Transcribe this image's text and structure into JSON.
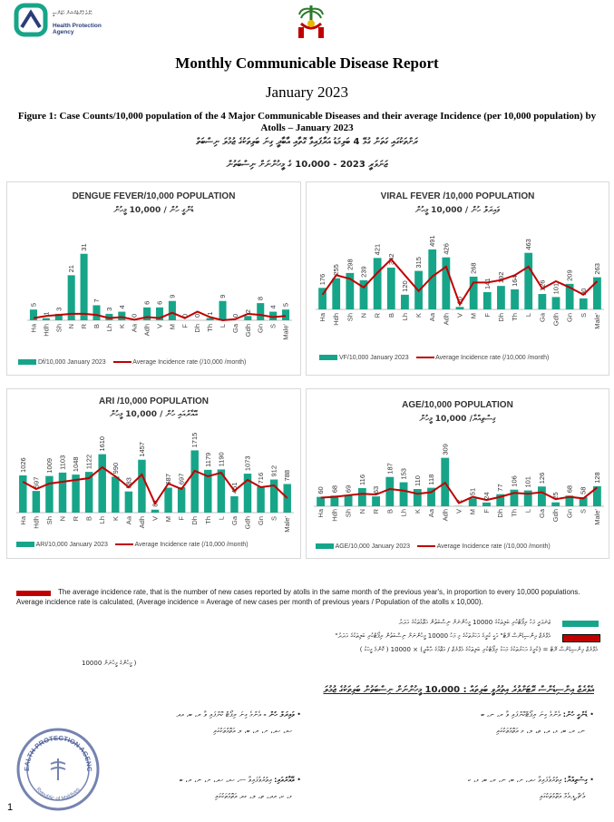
{
  "header": {
    "agency_dv": "ހެލްތު ޕްރޮޓެކްޝަން އެޖެންސީ",
    "agency_name": "Health Protection Agency",
    "colors": {
      "teal": "#17a589",
      "navy": "#2a3d7a",
      "red": "#c00000"
    }
  },
  "report": {
    "title": "Monthly Communicable Disease Report",
    "month": "January 2023",
    "figure_caption": "Figure 1: Case Counts/10,000 population of the 4 Major Communicable Diseases and their average Incidence (per 10,000 population) by Atolls – January 2023",
    "caption_dv_1": "ރަށްތަކުގައި ގަތަން ގުޅޭ 4 ބަލިމަޑު އަރާފައިވާ ގޮތާއި އާބާދީ ގިނަ ބަލިތަކުގެ ޖުމުލަ ނިސްބަތް",
    "caption_dv_2": "ޖަނަވަރީ 2023 - 10،000 ގެ މީހުންނަށް ނިސްބަތުން"
  },
  "chart_data": [
    {
      "type": "bar",
      "title": "DENGUE FEVER/10,000 POPULATION",
      "subtitle_dv": "ޑެންގީ ހުން / 10,000 މީހުން",
      "categories": [
        "Ha",
        "Hdh",
        "Sh",
        "N",
        "R",
        "B",
        "Lh",
        "K",
        "Aa",
        "Adh",
        "V",
        "M",
        "F",
        "Dh",
        "Th",
        "L",
        "Ga",
        "Gdh",
        "Gn",
        "S",
        "Male'"
      ],
      "series": [
        {
          "name": "Df/10,000 January 2023",
          "values": [
            5,
            1,
            3,
            21,
            31,
            7,
            3,
            4,
            0,
            6,
            6,
            9,
            0,
            0,
            1,
            9,
            0,
            2,
            8,
            4,
            5
          ]
        },
        {
          "name": "Average Incidence rate (/10,000 /month)",
          "values": [
            1,
            2,
            2.5,
            3,
            3,
            2.5,
            1,
            1.5,
            0.3,
            1.5,
            1,
            3.5,
            1,
            4,
            1.5,
            0,
            0.5,
            3,
            2.5,
            1.5,
            2
          ]
        }
      ],
      "ylim": [
        0,
        33
      ]
    },
    {
      "type": "bar",
      "title": "VIRAL FEVER /10,000 POPULATION",
      "subtitle_dv": "ވައިރަލް ހުން / 10,000 މީހުން",
      "categories": [
        "Ha",
        "Hdh",
        "Sh",
        "N",
        "R",
        "B",
        "Lh",
        "K",
        "Aa",
        "Adh",
        "V",
        "M",
        "F",
        "Dh",
        "Th",
        "L",
        "Ga",
        "Gdh",
        "Gn",
        "S",
        "Male'"
      ],
      "series": [
        {
          "name": "VF/10,000 January 2023",
          "values": [
            176,
            255,
            298,
            239,
            421,
            342,
            120,
            315,
            491,
            426,
            20,
            268,
            141,
            192,
            164,
            463,
            126,
            101,
            209,
            90,
            263
          ]
        },
        {
          "name": "Average Incidence rate (/10,000 /month)",
          "values": [
            120,
            280,
            250,
            180,
            300,
            410,
            280,
            150,
            270,
            350,
            40,
            220,
            220,
            240,
            280,
            350,
            170,
            230,
            180,
            120,
            230
          ]
        }
      ],
      "ylim": [
        0,
        520
      ]
    },
    {
      "type": "bar",
      "title": "ARI /10,000 POPULATION",
      "subtitle_dv": "އޭއާރުއައި ހުން / 10,000 މީހުން",
      "categories": [
        "Ha",
        "Hdh",
        "Sh",
        "N",
        "R",
        "B",
        "Lh",
        "K",
        "Aa",
        "Adh",
        "V",
        "M",
        "F",
        "Dh",
        "Th",
        "L",
        "Ga",
        "Gdh",
        "Gn",
        "S",
        "Male'"
      ],
      "series": [
        {
          "name": "ARI/10,000 January 2023",
          "values": [
            1026,
            597,
            1009,
            1103,
            1048,
            1122,
            1610,
            990,
            583,
            1457,
            81,
            687,
            697,
            1715,
            1179,
            1190,
            451,
            1073,
            716,
            912,
            788
          ]
        },
        {
          "name": "Average Incidence rate (/10,000 /month)",
          "values": [
            850,
            650,
            800,
            850,
            900,
            950,
            1250,
            1000,
            700,
            1050,
            250,
            800,
            650,
            1150,
            1000,
            1100,
            600,
            900,
            700,
            750,
            400
          ]
        }
      ],
      "ylim": [
        0,
        1800
      ]
    },
    {
      "type": "bar",
      "title": "AGE/10,000 POPULATION",
      "subtitle_dv": "ގިސްތިއްޔާ/ 10,000 މީހުން",
      "categories": [
        "Ha",
        "Hdh",
        "Sh",
        "N",
        "R",
        "B",
        "Lh",
        "K",
        "Aa",
        "Adh",
        "V",
        "M",
        "F",
        "Dh",
        "Th",
        "L",
        "Ga",
        "Gdh",
        "Gn",
        "S",
        "Male'"
      ],
      "series": [
        {
          "name": "AGE/10,000 January 2023",
          "values": [
            60,
            68,
            69,
            116,
            63,
            187,
            153,
            110,
            118,
            309,
            2,
            51,
            24,
            77,
            106,
            101,
            126,
            25,
            68,
            58,
            128
          ]
        },
        {
          "name": "Average Incidence rate (/10,000 /month)",
          "values": [
            55,
            60,
            70,
            80,
            75,
            110,
            100,
            80,
            90,
            150,
            20,
            60,
            40,
            60,
            85,
            80,
            90,
            45,
            60,
            50,
            120
          ]
        }
      ],
      "ylim": [
        0,
        330
      ]
    }
  ],
  "notes": {
    "avg_incidence_note": "The average incidence rate, that is the number of new cases reported by atolls in the same month of the previous year's, in proportion to every 10,000 populations. Average incidence rate is calculated, (Average incidence = Average of new cases per month of previous years / Population of the atolls x 10,000).",
    "teal_note_dv": "ޖަނަވަރީ މަހު ރިޕޯޓްކުރި ބަލިތަކުގެ 10000 މީހުންނަށް ނިސްބަތުން އަތޮޅުތަކުގެ އަދަދު",
    "red_note_dv_1": "\"އެވްރެޖް އިންސިޑެންސް ރޭޓް\" އަކީ ކުރީގެ އަހަރުތަކުގެ މި މަހު 10000 މީހުންނަށް ނިސްބަތުން ރިޕޯޓްކުރި ބަލިތަކުގެ އަދަދު",
    "red_note_dv_2": "( އެވްރެޖް އިންސިޑެންސް ރޭޓް = (ކުރީގެ އަހަރުތަކުގެ މަހަކު ރިޕޯޓްކުރި ބަލިތަކުގެ އެވްރެޖް / އަތޮޅުގެ އާބާދީ) × 10000 ( ކޮންމެ މީހަކު",
    "red_note_dv_3": "10000 މީހުންގެ މީހުނަށް )"
  },
  "highlights": {
    "heading_dv": "އެވްރެޖް އިންސިޑެންސް ރޭޓަށްވުރެ އިތުރުވީ ބަލިތައް : 10،000 މީހުންނަށް ނިސްބަތުން ބަލިތަކުގެ ޖުމުލަ",
    "item1_head": "ޑެންގީ ހުން:",
    "item1_text": "އެންމެ ގިނަ ރިޕޯޓްކޮށްފައި ވާ ރ، ނ، ބ",
    "item1_text2": "ނ، ރ، ބ، ޅ، ދ، ތ، ލ، މ އަތޮޅުތަކުގައި",
    "item2_head": "ވައިރަލް ހުން -",
    "item2_text": "އެންމެ ގިނަ ރިޕޯޓް ކޮށްފައި ވާ ރ، ބ، އދ",
    "item2_text2": "ހއ، ހދ، ށ، ރ، ބ، ލ އަތޮޅުތަކުގައި",
    "item3_head": "ގިސްތިއްޔާ:",
    "item3_text": "އިތުރުވެފައިވާ ހދ، ށ، ބ، ނ، ރ، ބ، ޅ، ކ",
    "item3_text2": "އެޗް.ޑީ.އެމް އަތޮޅުތަކުގައި",
    "item4_head": "އޭއާރުއައި:",
    "item4_text": "އިތުރުވެފައިވާ ސ، ހއ، ހދ، ށ، ނ، ރ، ބ",
    "item4_text2": "ޅ، ކ، އދ، ތ، ލ، ގދ އަތޮޅުތަކުގައި",
    "seal_text": "HEALTH PROTECTION AGENCY",
    "seal_sub": "Republic of Maldives"
  },
  "page_number": "1"
}
